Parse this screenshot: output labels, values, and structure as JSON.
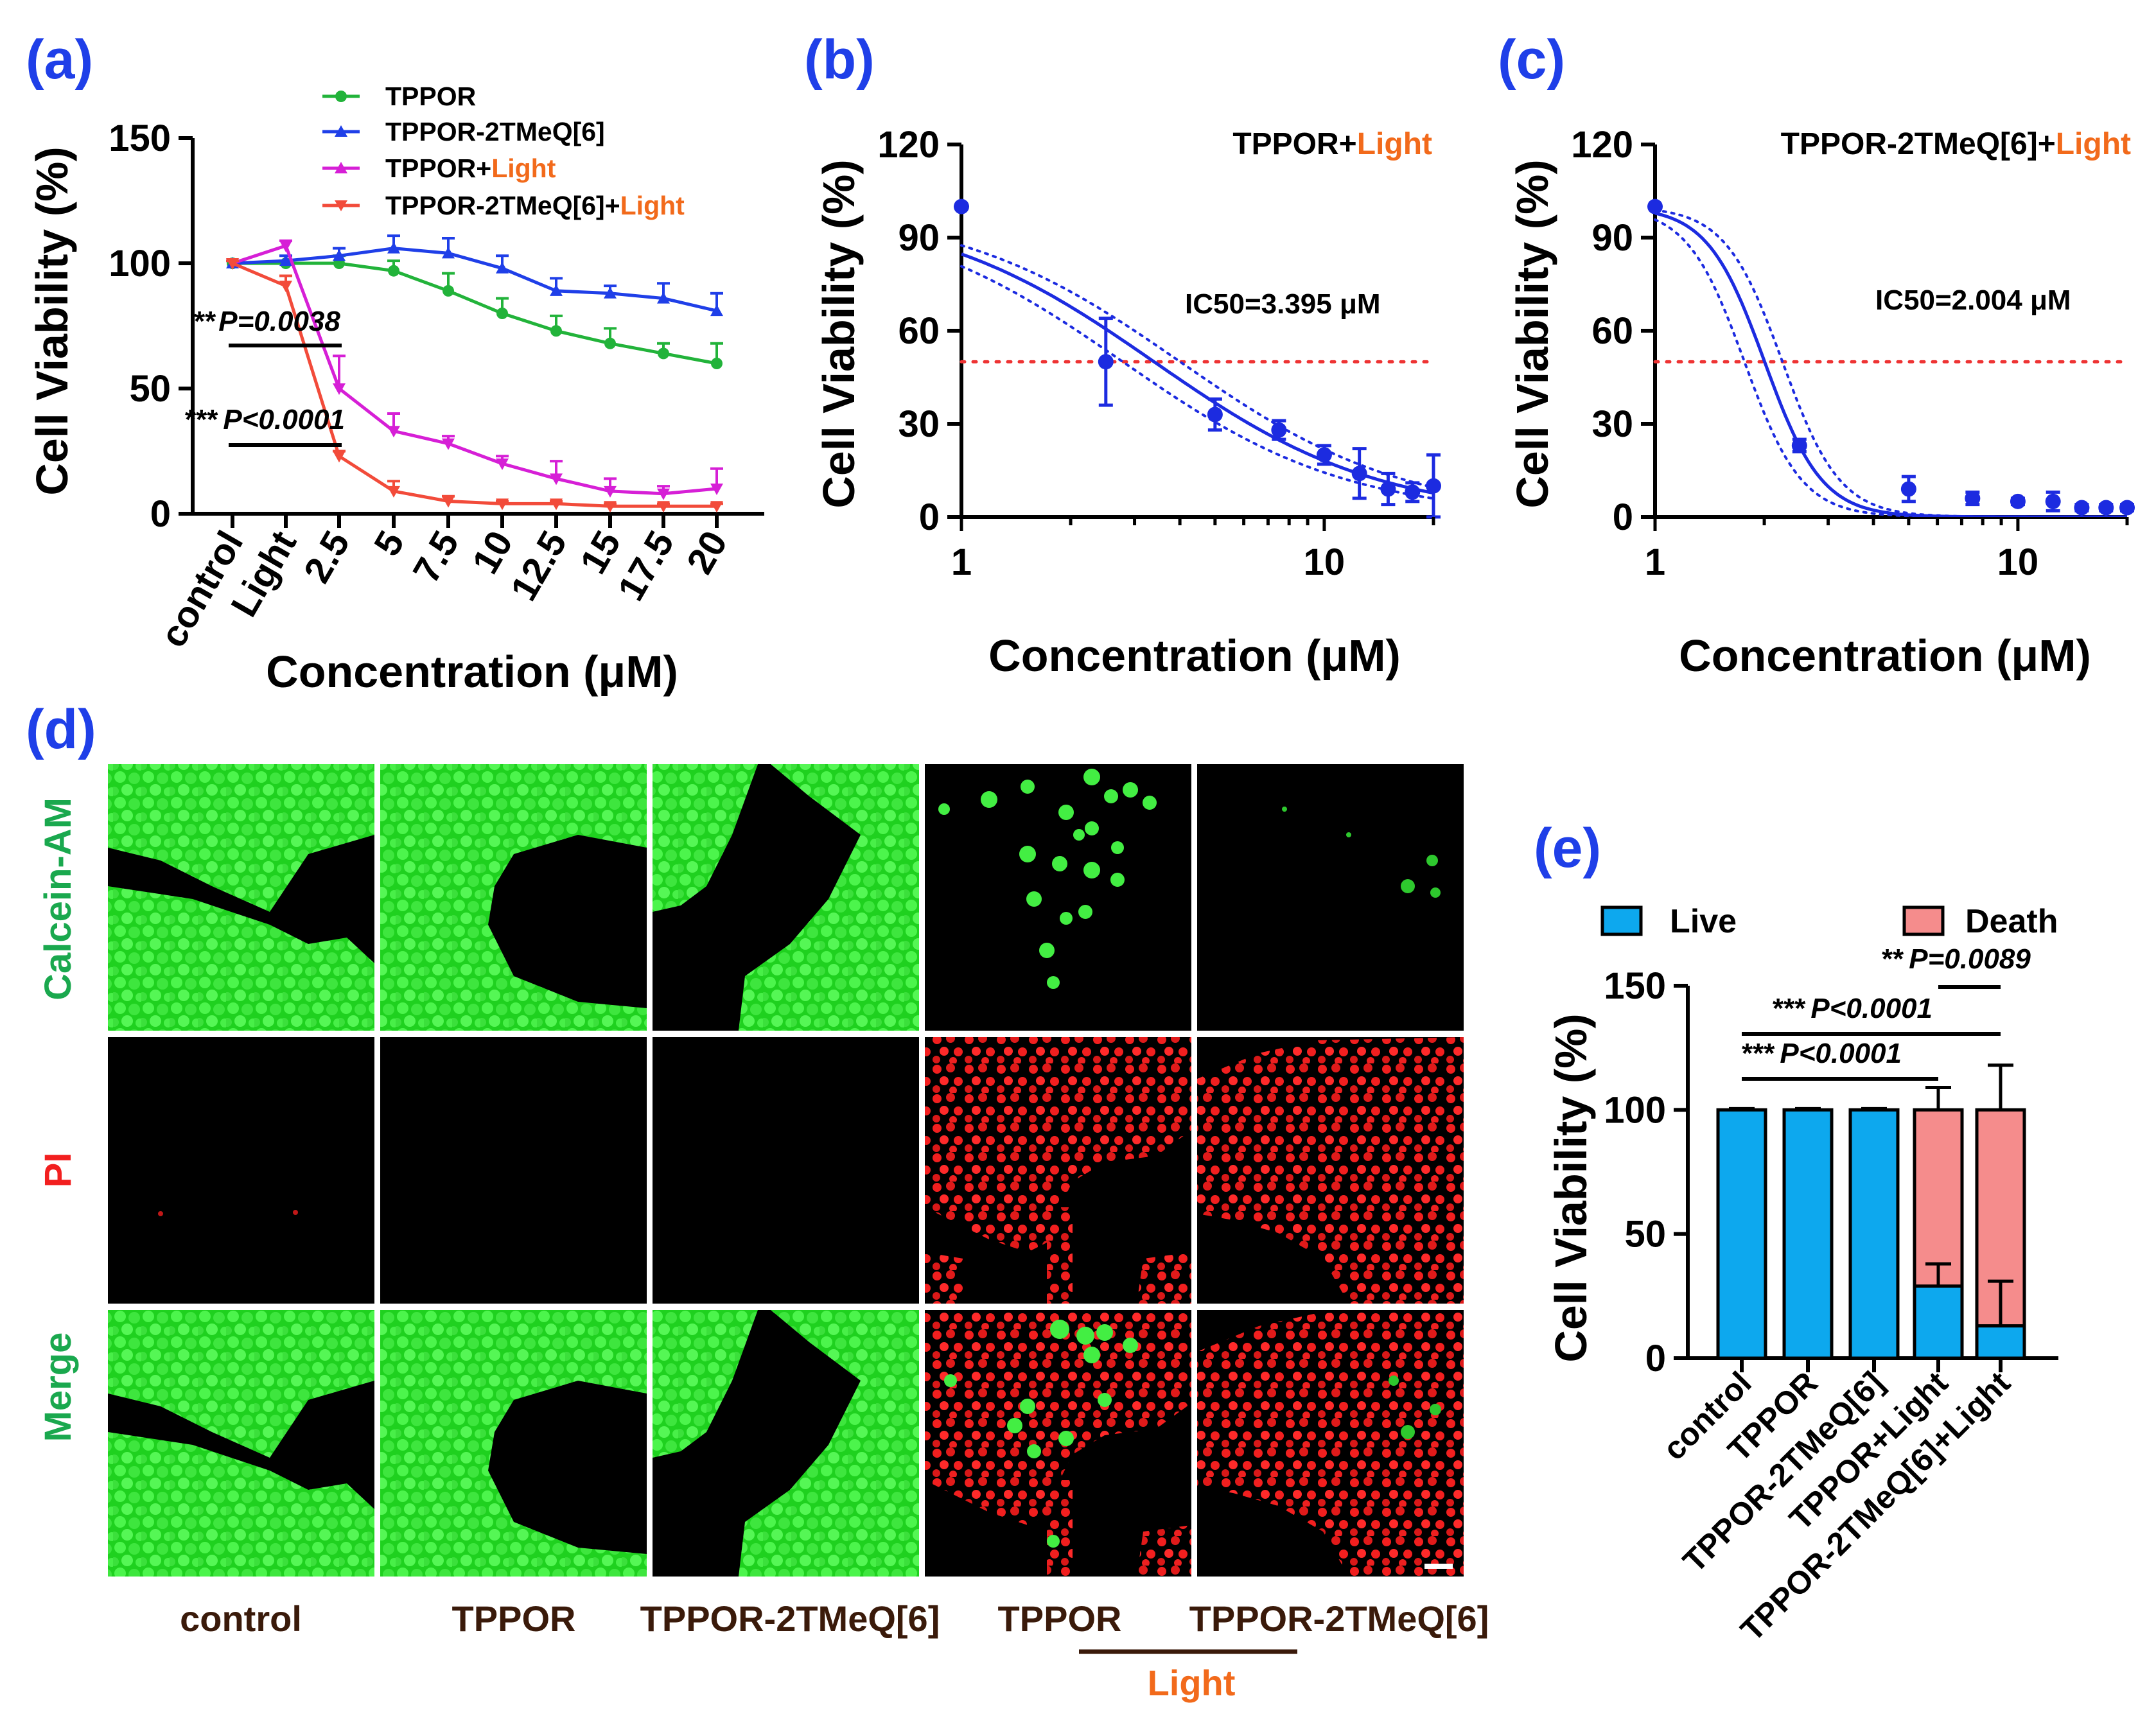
{
  "colors": {
    "panel_label": "#1f3fe8",
    "tppor": "#22b33a",
    "tppor_2tmeq": "#1f3fe8",
    "tppor_light": "#d61fd6",
    "tppor_2tmeq_light": "#f24b3a",
    "light_text": "#f26a1b",
    "live": "#0da8ee",
    "death": "#f58c8c",
    "fit": "#1c2be0",
    "threshold": "#ee3333"
  },
  "chart_data": [
    {
      "panel": "(a)",
      "type": "line",
      "xlabel": "Concentration (μM)",
      "ylabel": "Cell Viability (%)",
      "ylim": [
        0,
        150
      ],
      "yticks": [
        "0",
        "50",
        "100",
        "150"
      ],
      "categories": [
        "control",
        "Light",
        "2.5",
        "5",
        "7.5",
        "10",
        "12.5",
        "15",
        "17.5",
        "20"
      ],
      "series": [
        {
          "name": "TPPOR",
          "name_suffix": "",
          "marker": "circle",
          "x_start": 0,
          "values": [
            100,
            100,
            100,
            97,
            89,
            80,
            73,
            68,
            64,
            60
          ],
          "errors": [
            1,
            1,
            3,
            4,
            7,
            6,
            6,
            6,
            4,
            8
          ]
        },
        {
          "name": "TPPOR-2TMeQ[6]",
          "name_suffix": "",
          "marker": "triangle",
          "x_start": 0,
          "values": [
            100,
            101,
            103,
            106,
            104,
            98,
            89,
            88,
            86,
            81
          ],
          "errors": [
            1,
            2,
            3,
            5,
            6,
            5,
            5,
            3,
            6,
            7
          ]
        },
        {
          "name": "TPPOR+",
          "name_suffix": "Light",
          "marker": "triangle-down",
          "x_start": 0,
          "values": [
            100,
            107,
            50,
            33,
            28,
            20,
            14,
            9,
            8,
            10
          ],
          "errors": [
            1,
            2,
            13,
            7,
            3,
            3,
            7,
            5,
            3,
            8
          ]
        },
        {
          "name": "TPPOR-2TMeQ[6]+",
          "name_suffix": "Light",
          "marker": "triangle-down",
          "x_start": 0,
          "values": [
            100,
            91,
            23,
            9,
            5,
            4,
            4,
            3,
            3,
            3
          ],
          "errors": [
            1,
            4,
            2,
            4,
            2,
            1,
            1,
            1,
            1,
            1
          ]
        }
      ],
      "annotations": [
        {
          "stars": "**",
          "text": "P=0.0038"
        },
        {
          "stars": "***",
          "text": "P<0.0001"
        }
      ]
    },
    {
      "panel": "(b)",
      "type": "scatter",
      "title": "TPPOR+",
      "title_suffix": "Light",
      "xlabel": "Concentration (μM)",
      "ylabel": "Cell Viability (%)",
      "xscale": "log",
      "xlim": [
        1,
        20
      ],
      "ylim": [
        0,
        120
      ],
      "xticks": [
        "1",
        "10"
      ],
      "yticks": [
        "0",
        "30",
        "60",
        "90",
        "120"
      ],
      "x": [
        1,
        2.5,
        5,
        7.5,
        10,
        12.5,
        15,
        17.5,
        20
      ],
      "y": [
        100,
        50,
        33,
        28,
        20,
        14,
        9,
        8,
        10
      ],
      "errors": [
        0,
        14,
        5,
        3,
        3,
        8,
        5,
        3,
        10
      ],
      "fit": {
        "top": 100,
        "bottom": 0,
        "ic50": 3.395,
        "hill": 1.4,
        "band": 0.18
      },
      "threshold": 50,
      "annotation": "IC50=3.395 μM"
    },
    {
      "panel": "(c)",
      "type": "scatter",
      "title": "TPPOR-2TMeQ[6]+",
      "title_suffix": "Light",
      "xlabel": "Concentration (μM)",
      "ylabel": "Cell Viability (%)",
      "xscale": "log",
      "xlim": [
        1,
        20
      ],
      "ylim": [
        0,
        120
      ],
      "xticks": [
        "1",
        "10"
      ],
      "yticks": [
        "0",
        "30",
        "60",
        "90",
        "120"
      ],
      "x": [
        1,
        2.5,
        5,
        7.5,
        10,
        12.5,
        15,
        17.5,
        20
      ],
      "y": [
        100,
        23,
        9,
        6,
        5,
        5,
        3,
        3,
        3
      ],
      "errors": [
        0,
        2,
        4,
        2,
        1,
        3,
        1,
        1,
        1
      ],
      "fit": {
        "top": 100,
        "bottom": 0,
        "ic50": 2.004,
        "hill": 5.5,
        "band": 0.12
      },
      "threshold": 50,
      "annotation": "IC50=2.004 μM"
    },
    {
      "panel": "(e)",
      "type": "bar",
      "stacked": true,
      "ylabel": "Cell Viability (%)",
      "ylim": [
        0,
        150
      ],
      "yticks": [
        "0",
        "50",
        "100",
        "150"
      ],
      "categories": [
        "control",
        "TPPOR",
        "TPPOR-2TMeQ[6]",
        "TPPOR+Light",
        "TPPOR-2TMeQ[6]+Light"
      ],
      "series": [
        {
          "name": "Live",
          "values": [
            100,
            100,
            100,
            29,
            13
          ],
          "errors": [
            0.5,
            0.5,
            0.5,
            9,
            18
          ]
        },
        {
          "name": "Death",
          "values": [
            0,
            0,
            0,
            71,
            87
          ],
          "errors": [
            0,
            0,
            0,
            9,
            18
          ]
        }
      ],
      "annotations": [
        {
          "stars": "**",
          "text": "P=0.0089"
        },
        {
          "stars": "***",
          "text": "P<0.0001"
        },
        {
          "stars": "***",
          "text": "P<0.0001"
        }
      ]
    }
  ],
  "panel_labels": {
    "a": "(a)",
    "b": "(b)",
    "c": "(c)",
    "d": "(d)",
    "e": "(e)"
  },
  "microscopy": {
    "row_labels": [
      "Calcein-AM",
      "PI",
      "Merge"
    ],
    "column_labels": [
      "control",
      "TPPOR",
      "TPPOR-2TMeQ[6]",
      "TPPOR",
      "TPPOR-2TMeQ[6]"
    ],
    "light_label": "Light"
  }
}
